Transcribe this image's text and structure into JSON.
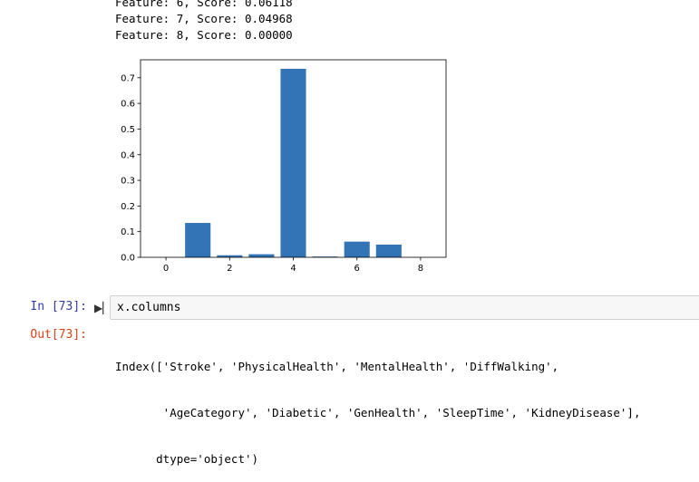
{
  "top_output": {
    "lines": [
      "Feature: 6, Score: 0.06118",
      "Feature: 7, Score: 0.04968",
      "Feature: 8, Score: 0.00000"
    ]
  },
  "chart_data": {
    "type": "bar",
    "x": [
      0,
      1,
      2,
      3,
      4,
      5,
      6,
      7,
      8
    ],
    "values": [
      0.0,
      0.134,
      0.008,
      0.012,
      0.735,
      0.003,
      0.06118,
      0.04968,
      0.0
    ],
    "xticks": [
      "0",
      "2",
      "4",
      "6",
      "8"
    ],
    "yticks": [
      "0.0",
      "0.1",
      "0.2",
      "0.3",
      "0.4",
      "0.5",
      "0.6",
      "0.7"
    ],
    "xlim": [
      -0.8,
      8.8
    ],
    "ylim": [
      0,
      0.77
    ],
    "color": "#3274b5",
    "title": "",
    "xlabel": "",
    "ylabel": ""
  },
  "cell": {
    "in_prompt": "In [73]:",
    "code": "x.columns",
    "out_prompt": "Out[73]:",
    "output_lines": [
      "Index(['Stroke', 'PhysicalHealth', 'MentalHealth', 'DiffWalking',",
      "       'AgeCategory', 'Diabetic', 'GenHealth', 'SleepTime', 'KidneyDisease'],",
      "      dtype='object')"
    ],
    "run_icon": "run-cell-icon"
  }
}
